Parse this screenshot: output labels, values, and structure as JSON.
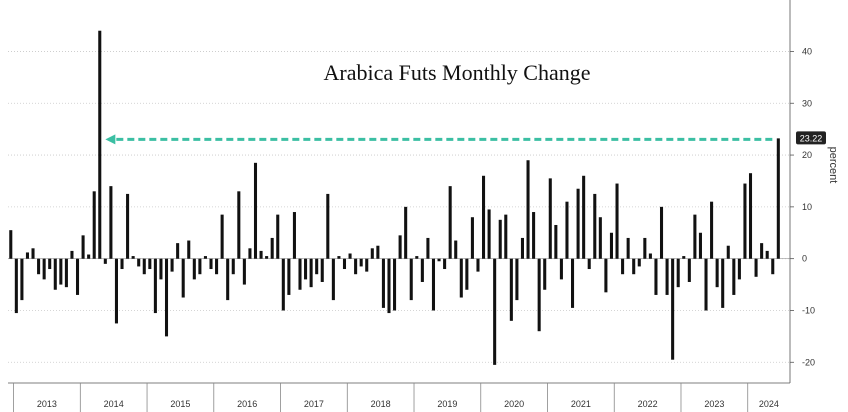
{
  "chart_data": {
    "type": "bar",
    "title": "Arabica Futs Monthly Change",
    "ylabel": "percent",
    "xlabel": "",
    "ylim": [
      -24,
      48
    ],
    "yticks": [
      -20,
      -10,
      0,
      10,
      20,
      30,
      40
    ],
    "grid": true,
    "start": "2012-12",
    "years": [
      "2013",
      "2014",
      "2015",
      "2016",
      "2017",
      "2018",
      "2019",
      "2020",
      "2021",
      "2022",
      "2023",
      "2024"
    ],
    "values": [
      5.5,
      -10.5,
      -8,
      1.2,
      2,
      -3,
      -4,
      -2,
      -6,
      -5,
      -5.5,
      1.5,
      -7,
      4.5,
      0.8,
      13,
      44,
      -1,
      14,
      -12.5,
      -2,
      12.5,
      0.5,
      -1.5,
      -3,
      -2,
      -10.5,
      -4,
      -15,
      -2.5,
      3,
      -7.5,
      3.5,
      -4,
      -3,
      0.5,
      -2,
      -3,
      8.5,
      -8,
      -3,
      13,
      -5,
      2,
      18.5,
      1.5,
      0.5,
      4,
      8.5,
      -10,
      -7,
      9,
      -6,
      -4,
      -5.5,
      -3,
      -4.5,
      12.5,
      -8,
      0.5,
      -2,
      1,
      -3,
      -1.5,
      -2.5,
      2,
      2.5,
      -9.5,
      -10.5,
      -10,
      4.5,
      10,
      -8,
      0.5,
      -4.5,
      4,
      -10,
      -0.5,
      -2,
      14,
      3.5,
      -7.5,
      -6,
      8,
      -2.5,
      16,
      9.5,
      -20.5,
      7.5,
      8.5,
      -12,
      -8,
      4,
      19,
      9,
      -14,
      -6,
      15.5,
      6.5,
      -4,
      11,
      -9.5,
      13.5,
      16,
      -2,
      12.5,
      8,
      -6.5,
      5,
      14.5,
      -3,
      4,
      -3,
      -1.5,
      4,
      1,
      -7,
      10,
      -7,
      -19.5,
      -5.5,
      0.5,
      -4.5,
      8.5,
      5,
      -10,
      11,
      -5.5,
      -9.5,
      2.5,
      -7,
      -4,
      14.5,
      16.5,
      -3.5,
      3,
      1.5,
      -3,
      23.22
    ],
    "last_value_label": "23.22",
    "annotation": "dashed arrow from latest bar back to the 2014 level"
  },
  "colors": {
    "bars": "#111111",
    "arrow": "#3bbfa3",
    "grid": "#c8c8c8",
    "badge": "#222222"
  }
}
